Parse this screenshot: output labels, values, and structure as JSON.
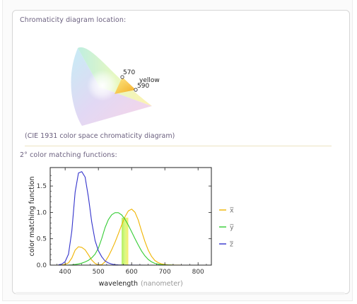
{
  "pod": {
    "chromaticity_title": "Chromaticity diagram location:",
    "chromaticity_caption": "(CIE 1931 color space chromaticity diagram)",
    "cmf_title": "2° color matching functions:"
  },
  "chromaticity": {
    "labels": [
      "570",
      "yellow",
      "590"
    ]
  },
  "chart_data": {
    "type": "line",
    "title": "",
    "xlabel": "wavelength",
    "xunit": "(nanometer)",
    "ylabel": "color matching function",
    "xlim": [
      355,
      840
    ],
    "ylim": [
      0,
      1.85
    ],
    "xticks": [
      400,
      500,
      600,
      700,
      800
    ],
    "yticks": [
      0.0,
      0.5,
      1.0,
      1.5
    ],
    "ytick_labels": [
      "0.0",
      "0.5",
      "1.0",
      "1.5"
    ],
    "highlight_band": {
      "range": [
        570,
        590
      ],
      "color": "#c6f264"
    },
    "series": [
      {
        "name": "x̅",
        "color": "#f0b400",
        "x": [
          380,
          390,
          400,
          410,
          420,
          430,
          440,
          450,
          460,
          470,
          480,
          490,
          500,
          510,
          520,
          530,
          540,
          550,
          560,
          570,
          580,
          590,
          600,
          610,
          620,
          630,
          640,
          650,
          660,
          670,
          680,
          690,
          700,
          710,
          720,
          730,
          740,
          750,
          760,
          770,
          780,
          800,
          820,
          830
        ],
        "y": [
          0.0014,
          0.0042,
          0.0143,
          0.0435,
          0.1344,
          0.2839,
          0.3483,
          0.3362,
          0.2908,
          0.1954,
          0.0956,
          0.032,
          0.0049,
          0.0093,
          0.0633,
          0.1655,
          0.2904,
          0.4334,
          0.5945,
          0.7621,
          0.9163,
          1.0263,
          1.0622,
          1.0026,
          0.8544,
          0.6424,
          0.4479,
          0.2835,
          0.1649,
          0.0874,
          0.0468,
          0.0227,
          0.0114,
          0.0058,
          0.0029,
          0.0014,
          0.0007,
          0.0003,
          0.0002,
          0.0001,
          0.0,
          0.0,
          0.0,
          0.0
        ]
      },
      {
        "name": "y̅",
        "color": "#33cc33",
        "x": [
          380,
          390,
          400,
          410,
          420,
          430,
          440,
          450,
          460,
          470,
          480,
          490,
          500,
          510,
          520,
          530,
          540,
          550,
          560,
          570,
          580,
          590,
          600,
          610,
          620,
          630,
          640,
          650,
          660,
          670,
          680,
          690,
          700,
          710,
          720,
          730,
          740,
          750,
          760,
          770,
          780,
          800,
          820,
          830
        ],
        "y": [
          0.0,
          0.0001,
          0.0004,
          0.0012,
          0.004,
          0.0116,
          0.023,
          0.038,
          0.06,
          0.091,
          0.139,
          0.208,
          0.323,
          0.503,
          0.71,
          0.862,
          0.954,
          0.995,
          0.995,
          0.952,
          0.87,
          0.757,
          0.631,
          0.503,
          0.381,
          0.265,
          0.175,
          0.107,
          0.061,
          0.032,
          0.017,
          0.0082,
          0.0041,
          0.0021,
          0.001,
          0.0005,
          0.0002,
          0.0001,
          0.0001,
          0.0,
          0.0,
          0.0,
          0.0,
          0.0
        ]
      },
      {
        "name": "z̅",
        "color": "#3333cc",
        "x": [
          380,
          390,
          400,
          410,
          420,
          430,
          440,
          450,
          460,
          470,
          480,
          490,
          500,
          510,
          520,
          530,
          540,
          550,
          560,
          570,
          580,
          600,
          650,
          700,
          750,
          800,
          830
        ],
        "y": [
          0.0065,
          0.0201,
          0.0679,
          0.2074,
          0.6456,
          1.3856,
          1.7471,
          1.7721,
          1.6692,
          1.2876,
          0.813,
          0.4652,
          0.272,
          0.1582,
          0.0782,
          0.0422,
          0.0203,
          0.0087,
          0.0039,
          0.0021,
          0.0017,
          0.0008,
          0.0,
          0.0,
          0.0,
          0.0,
          0.0
        ]
      }
    ],
    "legend_position": "right"
  }
}
